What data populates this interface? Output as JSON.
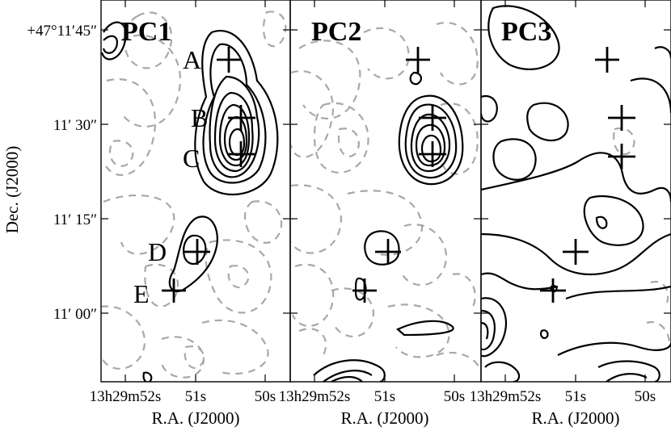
{
  "panels": [
    {
      "title": "PC1"
    },
    {
      "title": "PC2"
    },
    {
      "title": "PC3"
    }
  ],
  "source_labels": [
    "A",
    "B",
    "C",
    "D",
    "E"
  ],
  "y_axis": {
    "title": "Dec. (J2000)",
    "ticks": [
      {
        "deg": "+47°11′45″"
      },
      {
        "min": "11′ 30″"
      },
      {
        "min": "11′ 15″"
      },
      {
        "min": "11′ 00″"
      }
    ]
  },
  "x_axis": {
    "title": "R.A. (J2000)",
    "ticks": [
      "13h29m52s",
      "51s",
      "50s"
    ]
  },
  "colors": {
    "positive_contour": "#000000",
    "negative_contour": "#a8a8a8"
  }
}
